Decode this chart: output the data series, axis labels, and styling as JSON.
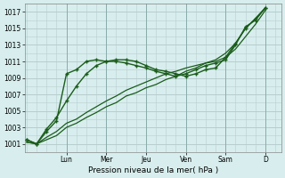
{
  "xlabel": "Pression niveau de la mer( hPa )",
  "bg_color": "#d8eeee",
  "grid_color": "#b8cece",
  "line_color": "#1a5c1a",
  "ylim": [
    1000,
    1018
  ],
  "yticks": [
    1001,
    1003,
    1005,
    1007,
    1009,
    1011,
    1013,
    1015,
    1017
  ],
  "day_labels": [
    "Lun",
    "Mer",
    "Jeu",
    "Ven",
    "Sam",
    "D"
  ],
  "day_positions": [
    2.0,
    4.0,
    6.0,
    8.0,
    10.0,
    12.0
  ],
  "xlim": [
    -0.1,
    12.8
  ],
  "series": [
    {
      "x": [
        0,
        0.5,
        1.0,
        1.5,
        2.0,
        2.5,
        3.0,
        3.5,
        4.0,
        4.5,
        5.0,
        5.5,
        6.0,
        6.5,
        7.0,
        7.5,
        8.0,
        8.5,
        9.0,
        9.5,
        10.0,
        10.5,
        11.0,
        11.5,
        12.0
      ],
      "y": [
        1001.2,
        1001.0,
        1001.5,
        1002.0,
        1003.0,
        1003.5,
        1004.2,
        1004.8,
        1005.5,
        1006.0,
        1006.8,
        1007.2,
        1007.8,
        1008.2,
        1008.8,
        1009.2,
        1009.8,
        1010.2,
        1010.8,
        1011.2,
        1012.0,
        1013.2,
        1015.0,
        1016.2,
        1017.5
      ],
      "marker": false,
      "lw": 0.9
    },
    {
      "x": [
        0,
        0.5,
        1.0,
        1.5,
        2.0,
        2.5,
        3.0,
        3.5,
        4.0,
        4.5,
        5.0,
        5.5,
        6.0,
        6.5,
        7.0,
        7.5,
        8.0,
        8.5,
        9.0,
        9.5,
        10.0,
        10.5,
        11.0,
        11.5,
        12.0
      ],
      "y": [
        1001.2,
        1001.0,
        1001.8,
        1002.5,
        1003.5,
        1004.0,
        1004.8,
        1005.5,
        1006.2,
        1006.8,
        1007.5,
        1008.0,
        1008.5,
        1009.0,
        1009.5,
        1009.8,
        1010.2,
        1010.5,
        1010.8,
        1011.0,
        1011.5,
        1012.5,
        1014.0,
        1015.5,
        1017.2
      ],
      "marker": false,
      "lw": 0.9
    },
    {
      "x": [
        0,
        0.5,
        1.0,
        1.5,
        2.0,
        2.5,
        3.0,
        3.5,
        4.0,
        4.5,
        5.0,
        5.5,
        6.0,
        6.5,
        7.0,
        7.5,
        8.0,
        8.5,
        9.0,
        9.5,
        10.0,
        10.5,
        11.0,
        11.5,
        12.0
      ],
      "y": [
        1001.5,
        1001.0,
        1002.8,
        1004.2,
        1006.2,
        1008.0,
        1009.5,
        1010.5,
        1011.0,
        1011.2,
        1011.2,
        1011.0,
        1010.5,
        1010.0,
        1009.8,
        1009.5,
        1009.2,
        1009.5,
        1010.0,
        1010.2,
        1011.5,
        1013.2,
        1015.0,
        1016.2,
        1017.5
      ],
      "marker": true,
      "lw": 1.0
    },
    {
      "x": [
        0,
        0.5,
        1.0,
        1.5,
        2.0,
        2.5,
        3.0,
        3.5,
        4.0,
        4.5,
        5.0,
        5.5,
        6.0,
        6.5,
        7.0,
        7.5,
        8.0,
        8.5,
        9.0,
        9.5,
        10.0,
        10.5,
        11.0,
        11.5,
        12.0
      ],
      "y": [
        1001.5,
        1001.0,
        1002.5,
        1003.8,
        1009.5,
        1010.0,
        1011.0,
        1011.2,
        1011.0,
        1011.0,
        1010.8,
        1010.5,
        1010.2,
        1009.8,
        1009.5,
        1009.2,
        1009.5,
        1010.0,
        1010.5,
        1010.8,
        1011.2,
        1013.0,
        1015.2,
        1016.0,
        1017.5
      ],
      "marker": true,
      "lw": 1.0
    }
  ]
}
